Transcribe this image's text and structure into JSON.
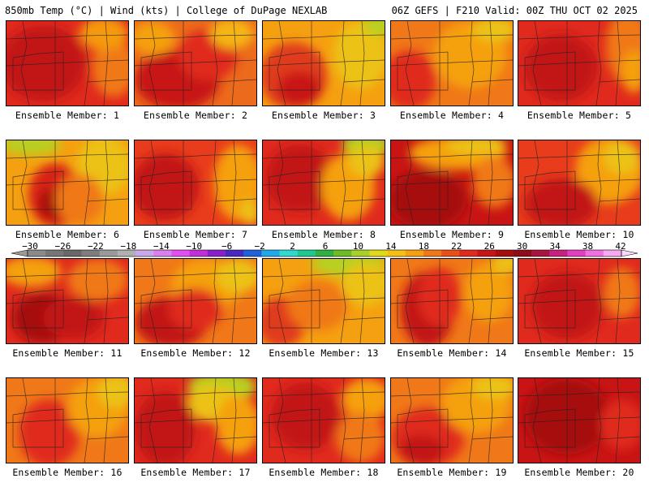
{
  "header": {
    "left": "850mb Temp (°C) | Wind (kts) | College of DuPage NEXLAB",
    "right": "06Z GEFS | F210 Valid: 00Z THU OCT 02 2025"
  },
  "panel_label_prefix": "Ensemble Member: ",
  "members": [
    {
      "number": "1",
      "base": "#e02a1e",
      "blobs": [
        [
          "#c21212",
          0.3,
          0.5,
          0.35,
          0.45
        ],
        [
          "#f07818",
          0.88,
          0.55,
          0.18,
          0.35
        ],
        [
          "#f59a10",
          0.8,
          0.15,
          0.2,
          0.2
        ]
      ]
    },
    {
      "number": "2",
      "base": "#ec6a1c",
      "blobs": [
        [
          "#c81414",
          0.35,
          0.7,
          0.35,
          0.35
        ],
        [
          "#f5a010",
          0.15,
          0.2,
          0.18,
          0.2
        ],
        [
          "#e02a1e",
          0.6,
          0.4,
          0.25,
          0.3
        ],
        [
          "#f5b512",
          0.8,
          0.15,
          0.18,
          0.18
        ]
      ]
    },
    {
      "number": "3",
      "base": "#f5a010",
      "blobs": [
        [
          "#e03a1e",
          0.25,
          0.65,
          0.28,
          0.4
        ],
        [
          "#ecc214",
          0.8,
          0.4,
          0.22,
          0.4
        ],
        [
          "#b8d020",
          0.95,
          0.05,
          0.12,
          0.12
        ],
        [
          "#c81414",
          0.3,
          0.8,
          0.18,
          0.2
        ]
      ]
    },
    {
      "number": "4",
      "base": "#f07818",
      "blobs": [
        [
          "#e02a1e",
          0.15,
          0.7,
          0.22,
          0.35
        ],
        [
          "#f5a010",
          0.65,
          0.4,
          0.3,
          0.4
        ],
        [
          "#ecc214",
          0.85,
          0.1,
          0.18,
          0.15
        ]
      ]
    },
    {
      "number": "5",
      "base": "#e02a1e",
      "blobs": [
        [
          "#c21212",
          0.35,
          0.55,
          0.3,
          0.4
        ],
        [
          "#f07818",
          0.9,
          0.3,
          0.18,
          0.45
        ],
        [
          "#f5a010",
          0.95,
          0.6,
          0.1,
          0.25
        ]
      ]
    },
    {
      "number": "6",
      "base": "#f5a010",
      "blobs": [
        [
          "#d82018",
          0.4,
          0.65,
          0.22,
          0.38
        ],
        [
          "#a61010",
          0.38,
          0.75,
          0.12,
          0.18
        ],
        [
          "#b8d020",
          0.2,
          0.05,
          0.25,
          0.12
        ],
        [
          "#ecc214",
          0.8,
          0.3,
          0.22,
          0.35
        ],
        [
          "#f07818",
          0.6,
          0.7,
          0.2,
          0.3
        ]
      ]
    },
    {
      "number": "7",
      "base": "#e83c1c",
      "blobs": [
        [
          "#c21212",
          0.25,
          0.55,
          0.28,
          0.4
        ],
        [
          "#f5a010",
          0.85,
          0.5,
          0.2,
          0.45
        ],
        [
          "#ecc214",
          0.95,
          0.85,
          0.08,
          0.15
        ]
      ]
    },
    {
      "number": "8",
      "base": "#e02a1e",
      "blobs": [
        [
          "#c21212",
          0.3,
          0.45,
          0.28,
          0.4
        ],
        [
          "#b8d020",
          0.85,
          0.05,
          0.2,
          0.14
        ],
        [
          "#f5a010",
          0.7,
          0.55,
          0.22,
          0.4
        ],
        [
          "#ecc214",
          0.85,
          0.25,
          0.15,
          0.18
        ]
      ]
    },
    {
      "number": "9",
      "base": "#c81414",
      "blobs": [
        [
          "#a60e0e",
          0.3,
          0.7,
          0.32,
          0.35
        ],
        [
          "#f5a010",
          0.55,
          0.15,
          0.4,
          0.2
        ],
        [
          "#f07818",
          0.85,
          0.5,
          0.18,
          0.3
        ],
        [
          "#ecc214",
          0.7,
          0.05,
          0.25,
          0.12
        ]
      ]
    },
    {
      "number": "10",
      "base": "#e83c1c",
      "blobs": [
        [
          "#f5a010",
          0.75,
          0.35,
          0.28,
          0.4
        ],
        [
          "#c21212",
          0.35,
          0.75,
          0.3,
          0.3
        ],
        [
          "#ecc214",
          0.85,
          0.2,
          0.15,
          0.2
        ]
      ]
    },
    {
      "number": "11",
      "base": "#e02a1e",
      "blobs": [
        [
          "#a61010",
          0.3,
          0.7,
          0.25,
          0.3
        ],
        [
          "#f5a010",
          0.2,
          0.15,
          0.25,
          0.18
        ],
        [
          "#f07818",
          0.75,
          0.25,
          0.25,
          0.25
        ],
        [
          "#c21212",
          0.55,
          0.7,
          0.25,
          0.25
        ]
      ]
    },
    {
      "number": "12",
      "base": "#f07818",
      "blobs": [
        [
          "#c21212",
          0.3,
          0.75,
          0.3,
          0.3
        ],
        [
          "#f5a010",
          0.6,
          0.3,
          0.3,
          0.3
        ],
        [
          "#ecc214",
          0.85,
          0.2,
          0.18,
          0.2
        ],
        [
          "#e02a1e",
          0.5,
          0.6,
          0.22,
          0.25
        ]
      ]
    },
    {
      "number": "13",
      "base": "#f5a010",
      "blobs": [
        [
          "#b8d020",
          0.7,
          0.05,
          0.3,
          0.16
        ],
        [
          "#e03a1e",
          0.15,
          0.75,
          0.2,
          0.3
        ],
        [
          "#ecc214",
          0.85,
          0.3,
          0.2,
          0.25
        ],
        [
          "#f07818",
          0.45,
          0.55,
          0.25,
          0.3
        ]
      ]
    },
    {
      "number": "14",
      "base": "#f07818",
      "blobs": [
        [
          "#c21212",
          0.3,
          0.6,
          0.22,
          0.45
        ],
        [
          "#e02a1e",
          0.4,
          0.45,
          0.18,
          0.35
        ],
        [
          "#f5a010",
          0.8,
          0.4,
          0.2,
          0.35
        ],
        [
          "#ecc214",
          0.95,
          0.05,
          0.12,
          0.12
        ]
      ]
    },
    {
      "number": "15",
      "base": "#e02a1e",
      "blobs": [
        [
          "#c21212",
          0.4,
          0.55,
          0.3,
          0.4
        ],
        [
          "#f07818",
          0.85,
          0.4,
          0.15,
          0.3
        ]
      ]
    },
    {
      "number": "16",
      "base": "#f07818",
      "blobs": [
        [
          "#e02a1e",
          0.35,
          0.65,
          0.25,
          0.4
        ],
        [
          "#f5a010",
          0.75,
          0.35,
          0.25,
          0.35
        ],
        [
          "#ecc214",
          0.9,
          0.15,
          0.15,
          0.2
        ]
      ]
    },
    {
      "number": "17",
      "base": "#e02a1e",
      "blobs": [
        [
          "#b8d020",
          0.72,
          0.1,
          0.28,
          0.18
        ],
        [
          "#ecc214",
          0.65,
          0.3,
          0.22,
          0.22
        ],
        [
          "#f5a010",
          0.85,
          0.55,
          0.18,
          0.35
        ],
        [
          "#c21212",
          0.25,
          0.6,
          0.25,
          0.45
        ]
      ]
    },
    {
      "number": "18",
      "base": "#e02a1e",
      "blobs": [
        [
          "#c21212",
          0.35,
          0.45,
          0.28,
          0.4
        ],
        [
          "#f5a010",
          0.85,
          0.25,
          0.2,
          0.25
        ],
        [
          "#f07818",
          0.8,
          0.7,
          0.2,
          0.3
        ]
      ]
    },
    {
      "number": "19",
      "base": "#f07818",
      "blobs": [
        [
          "#e02a1e",
          0.3,
          0.7,
          0.3,
          0.35
        ],
        [
          "#c21212",
          0.25,
          0.85,
          0.18,
          0.18
        ],
        [
          "#f5a010",
          0.7,
          0.3,
          0.28,
          0.35
        ],
        [
          "#ecc214",
          0.85,
          0.1,
          0.18,
          0.15
        ]
      ]
    },
    {
      "number": "20",
      "base": "#c81414",
      "blobs": [
        [
          "#a60e0e",
          0.4,
          0.45,
          0.35,
          0.45
        ],
        [
          "#e02a1e",
          0.85,
          0.55,
          0.18,
          0.3
        ]
      ]
    }
  ],
  "colorbar": {
    "labels": [
      "-30",
      "-26",
      "-22",
      "-18",
      "-14",
      "-10",
      "-6",
      "-2",
      "2",
      "6",
      "10",
      "14",
      "18",
      "22",
      "26",
      "30",
      "34",
      "38",
      "42"
    ],
    "colors": [
      "#8a8a8a",
      "#767676",
      "#686868",
      "#7e7e7e",
      "#9a9a9a",
      "#b0b0b0",
      "#c8a8e8",
      "#d880ee",
      "#e050f0",
      "#c030d8",
      "#8a20c8",
      "#4a28c0",
      "#2060d8",
      "#20a8e8",
      "#30d8d0",
      "#20c890",
      "#30b040",
      "#6cbc28",
      "#a8d028",
      "#e0d818",
      "#f5c014",
      "#f5a010",
      "#f07818",
      "#e85018",
      "#e02a1e",
      "#c81414",
      "#a60e0e",
      "#8e0c1a",
      "#a81440",
      "#c82080",
      "#e040c0",
      "#f070e0",
      "#f8a8f0"
    ]
  }
}
